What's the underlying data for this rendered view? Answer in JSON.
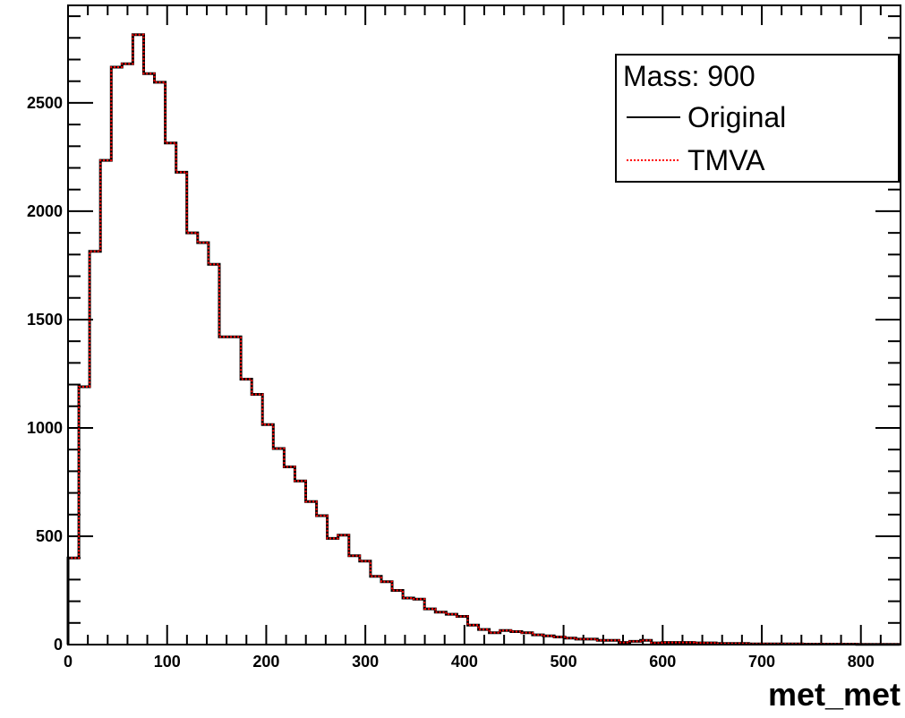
{
  "chart_data": {
    "type": "line",
    "subtype": "step-histogram",
    "xlabel": "met_met",
    "ylabel": "",
    "xlim": [
      0,
      840
    ],
    "ylim": [
      0,
      2950
    ],
    "bin_width": 10.9,
    "x_ticks": [
      "0",
      "100",
      "200",
      "300",
      "400",
      "500",
      "600",
      "700",
      "800"
    ],
    "x_tick_values": [
      0,
      100,
      200,
      300,
      400,
      500,
      600,
      700,
      800
    ],
    "y_ticks": [
      "0",
      "500",
      "1000",
      "1500",
      "2000",
      "2500"
    ],
    "y_tick_values": [
      0,
      500,
      1000,
      1500,
      2000,
      2500
    ],
    "legend": {
      "title": "Mass: 900",
      "placement": "top-right",
      "entries": [
        {
          "label": "Original",
          "color": "#000000",
          "style": "solid"
        },
        {
          "label": "TMVA",
          "color": "#ff0000",
          "style": "dotted"
        }
      ]
    },
    "series": [
      {
        "name": "Original",
        "color": "#000000",
        "values": [
          400,
          1190,
          1815,
          2235,
          2665,
          2680,
          2815,
          2635,
          2595,
          2315,
          2180,
          1900,
          1855,
          1755,
          1420,
          1420,
          1225,
          1155,
          1015,
          905,
          820,
          755,
          660,
          595,
          490,
          505,
          410,
          385,
          315,
          290,
          250,
          215,
          210,
          165,
          150,
          140,
          130,
          90,
          70,
          55,
          65,
          60,
          55,
          45,
          40,
          35,
          30,
          25,
          25,
          20,
          20,
          10,
          15,
          20,
          8,
          10,
          10,
          10,
          8,
          8,
          5,
          5,
          5,
          3,
          3,
          3,
          3,
          3,
          2,
          2,
          2,
          2,
          2,
          1,
          1,
          1,
          1
        ]
      },
      {
        "name": "TMVA",
        "color": "#ff0000",
        "values": [
          400,
          1190,
          1815,
          2235,
          2665,
          2680,
          2815,
          2635,
          2595,
          2315,
          2180,
          1900,
          1855,
          1755,
          1420,
          1420,
          1225,
          1155,
          1015,
          905,
          820,
          755,
          660,
          595,
          490,
          505,
          410,
          385,
          315,
          290,
          250,
          215,
          210,
          165,
          150,
          140,
          130,
          90,
          70,
          55,
          65,
          60,
          55,
          45,
          40,
          35,
          30,
          25,
          25,
          20,
          20,
          10,
          15,
          20,
          8,
          10,
          10,
          10,
          8,
          8,
          5,
          5,
          5,
          3,
          3,
          3,
          3,
          3,
          2,
          2,
          2,
          2,
          2,
          1,
          1,
          1,
          1
        ]
      }
    ]
  }
}
